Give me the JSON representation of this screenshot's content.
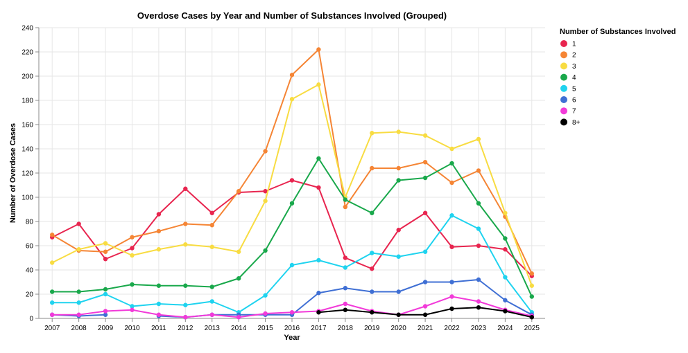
{
  "chart_data": {
    "type": "line",
    "title": "Overdose Cases by Year and Number of Substances Involved (Grouped)",
    "xlabel": "Year",
    "ylabel": "Number of Overdose Cases",
    "ylim": [
      0,
      240
    ],
    "y_ticks": [
      0,
      20,
      40,
      60,
      80,
      100,
      120,
      140,
      160,
      180,
      200,
      220,
      240
    ],
    "x": [
      "2007",
      "2008",
      "2009",
      "2010",
      "2011",
      "2012",
      "2013",
      "2014",
      "2015",
      "2016",
      "2017",
      "2018",
      "2019",
      "2020",
      "2021",
      "2022",
      "2023",
      "2024",
      "2025"
    ],
    "grid": true,
    "legend": {
      "title": "Number of Substances Involved",
      "position": "right"
    },
    "series": [
      {
        "name": "1",
        "color": "#e8254f",
        "values": [
          67,
          78,
          49,
          58,
          86,
          107,
          87,
          104,
          105,
          114,
          108,
          50,
          41,
          73,
          87,
          59,
          60,
          57,
          35
        ]
      },
      {
        "name": "2",
        "color": "#f58535",
        "values": [
          69,
          56,
          55,
          67,
          72,
          78,
          77,
          105,
          138,
          201,
          222,
          92,
          124,
          124,
          129,
          112,
          122,
          84,
          37
        ]
      },
      {
        "name": "3",
        "color": "#f8dc42",
        "values": [
          46,
          57,
          62,
          52,
          57,
          61,
          59,
          55,
          97,
          181,
          193,
          100,
          153,
          154,
          151,
          140,
          148,
          87,
          27
        ]
      },
      {
        "name": "4",
        "color": "#19a84b",
        "values": [
          22,
          22,
          24,
          28,
          27,
          27,
          26,
          33,
          56,
          95,
          132,
          98,
          87,
          114,
          116,
          128,
          95,
          66,
          18
        ]
      },
      {
        "name": "5",
        "color": "#1fd3ef",
        "values": [
          13,
          13,
          20,
          10,
          12,
          11,
          14,
          5,
          19,
          44,
          48,
          42,
          54,
          51,
          55,
          85,
          74,
          34,
          5
        ]
      },
      {
        "name": "6",
        "color": "#3f6fd4",
        "values": [
          3,
          2,
          3,
          null,
          2,
          1,
          3,
          3,
          3,
          3,
          21,
          25,
          22,
          22,
          30,
          30,
          32,
          15,
          3
        ]
      },
      {
        "name": "7",
        "color": "#f23ad9",
        "values": [
          3,
          3,
          6,
          7,
          3,
          1,
          3,
          1,
          4,
          5,
          6,
          12,
          6,
          3,
          10,
          18,
          14,
          7,
          2
        ]
      },
      {
        "name": "8+",
        "color": "#000000",
        "values": [
          null,
          null,
          null,
          null,
          null,
          null,
          null,
          null,
          null,
          null,
          5,
          7,
          5,
          3,
          3,
          8,
          9,
          6,
          1
        ]
      }
    ]
  }
}
